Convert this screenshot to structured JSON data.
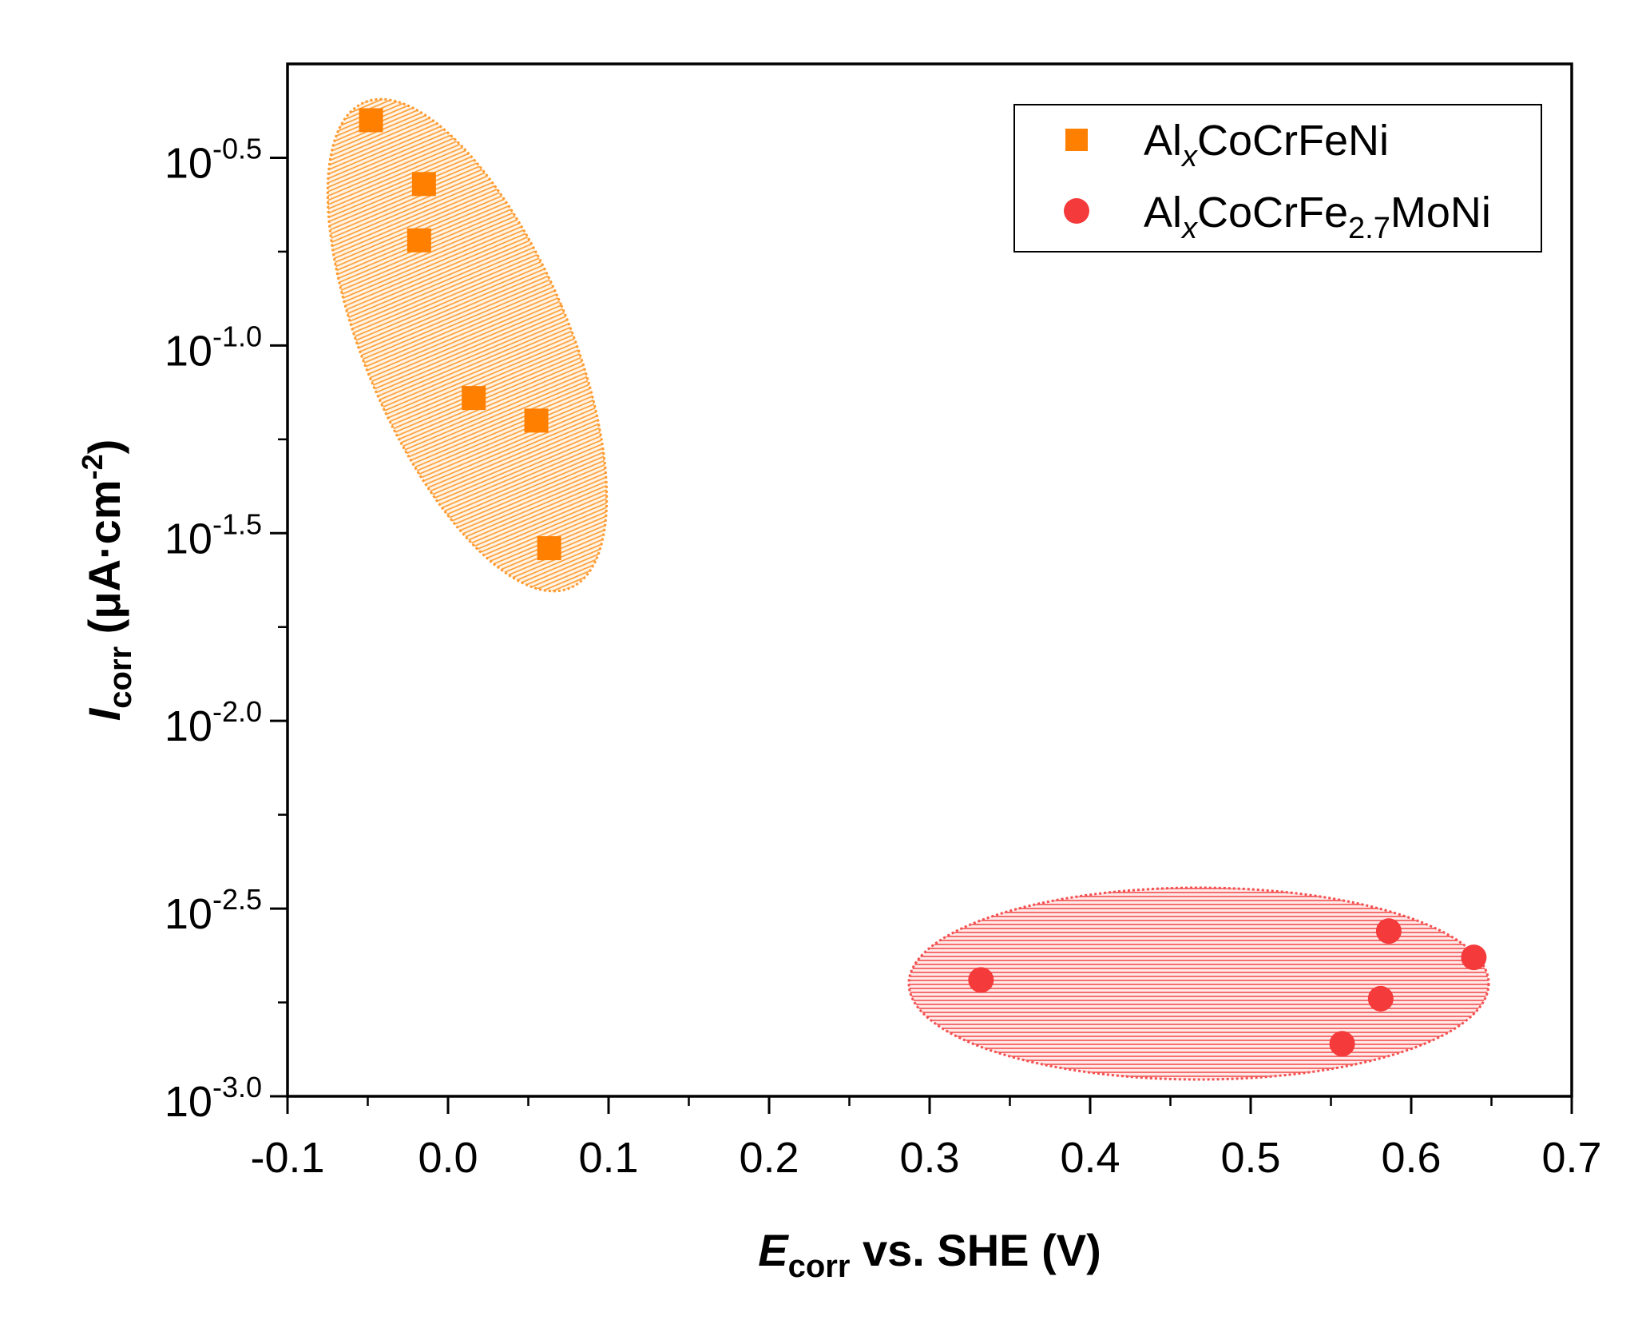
{
  "chart_data": {
    "type": "scatter",
    "x_axis": {
      "label_symbol": "E",
      "label_subscript": "corr",
      "label_rest": " vs. SHE (V)",
      "range": [
        -0.1,
        0.7
      ],
      "ticks": [
        -0.1,
        0.0,
        0.1,
        0.2,
        0.3,
        0.4,
        0.5,
        0.6,
        0.7
      ],
      "tick_labels": [
        "-0.1",
        "0.0",
        "0.1",
        "0.2",
        "0.3",
        "0.4",
        "0.5",
        "0.6",
        "0.7"
      ]
    },
    "y_axis": {
      "label_symbol": "I",
      "label_subscript": "corr",
      "label_rest": " (μA·cm",
      "label_sup": "-2",
      "label_close": ")",
      "scale": "log10",
      "range_log10": [
        -3.0,
        -0.25
      ],
      "ticks_log10": [
        -0.5,
        -1.0,
        -1.5,
        -2.0,
        -2.5,
        -3.0
      ],
      "tick_base": "10",
      "tick_exponents": [
        "-0.5",
        "-1.0",
        "-1.5",
        "-2.0",
        "-2.5",
        "-3.0"
      ]
    },
    "series": [
      {
        "name_main": "Al",
        "name_sub1": "x",
        "name_mid": "CoCrFeNi",
        "name_sub2": "",
        "name_end": "",
        "marker": "square",
        "color": "#ff7f00",
        "points": [
          {
            "x": -0.048,
            "y_log10": -0.4
          },
          {
            "x": -0.015,
            "y_log10": -0.57
          },
          {
            "x": -0.018,
            "y_log10": -0.72
          },
          {
            "x": 0.016,
            "y_log10": -1.14
          },
          {
            "x": 0.055,
            "y_log10": -1.2
          },
          {
            "x": 0.063,
            "y_log10": -1.54
          }
        ],
        "region": {
          "cx": 0.012,
          "cy_log10": -0.97,
          "color": "#ff9a2e"
        }
      },
      {
        "name_main": "Al",
        "name_sub1": "x",
        "name_mid": "CoCrFe",
        "name_sub2": "2.7",
        "name_end": "MoNi",
        "marker": "circle",
        "color": "#f43a3a",
        "points": [
          {
            "x": 0.332,
            "y_log10": -2.69
          },
          {
            "x": 0.586,
            "y_log10": -2.56
          },
          {
            "x": 0.639,
            "y_log10": -2.63
          },
          {
            "x": 0.581,
            "y_log10": -2.74
          },
          {
            "x": 0.557,
            "y_log10": -2.86
          }
        ],
        "region": {
          "cx": 0.493,
          "cy_log10": -2.69,
          "color": "#f45050"
        }
      }
    ],
    "legend_position": "top-right"
  }
}
